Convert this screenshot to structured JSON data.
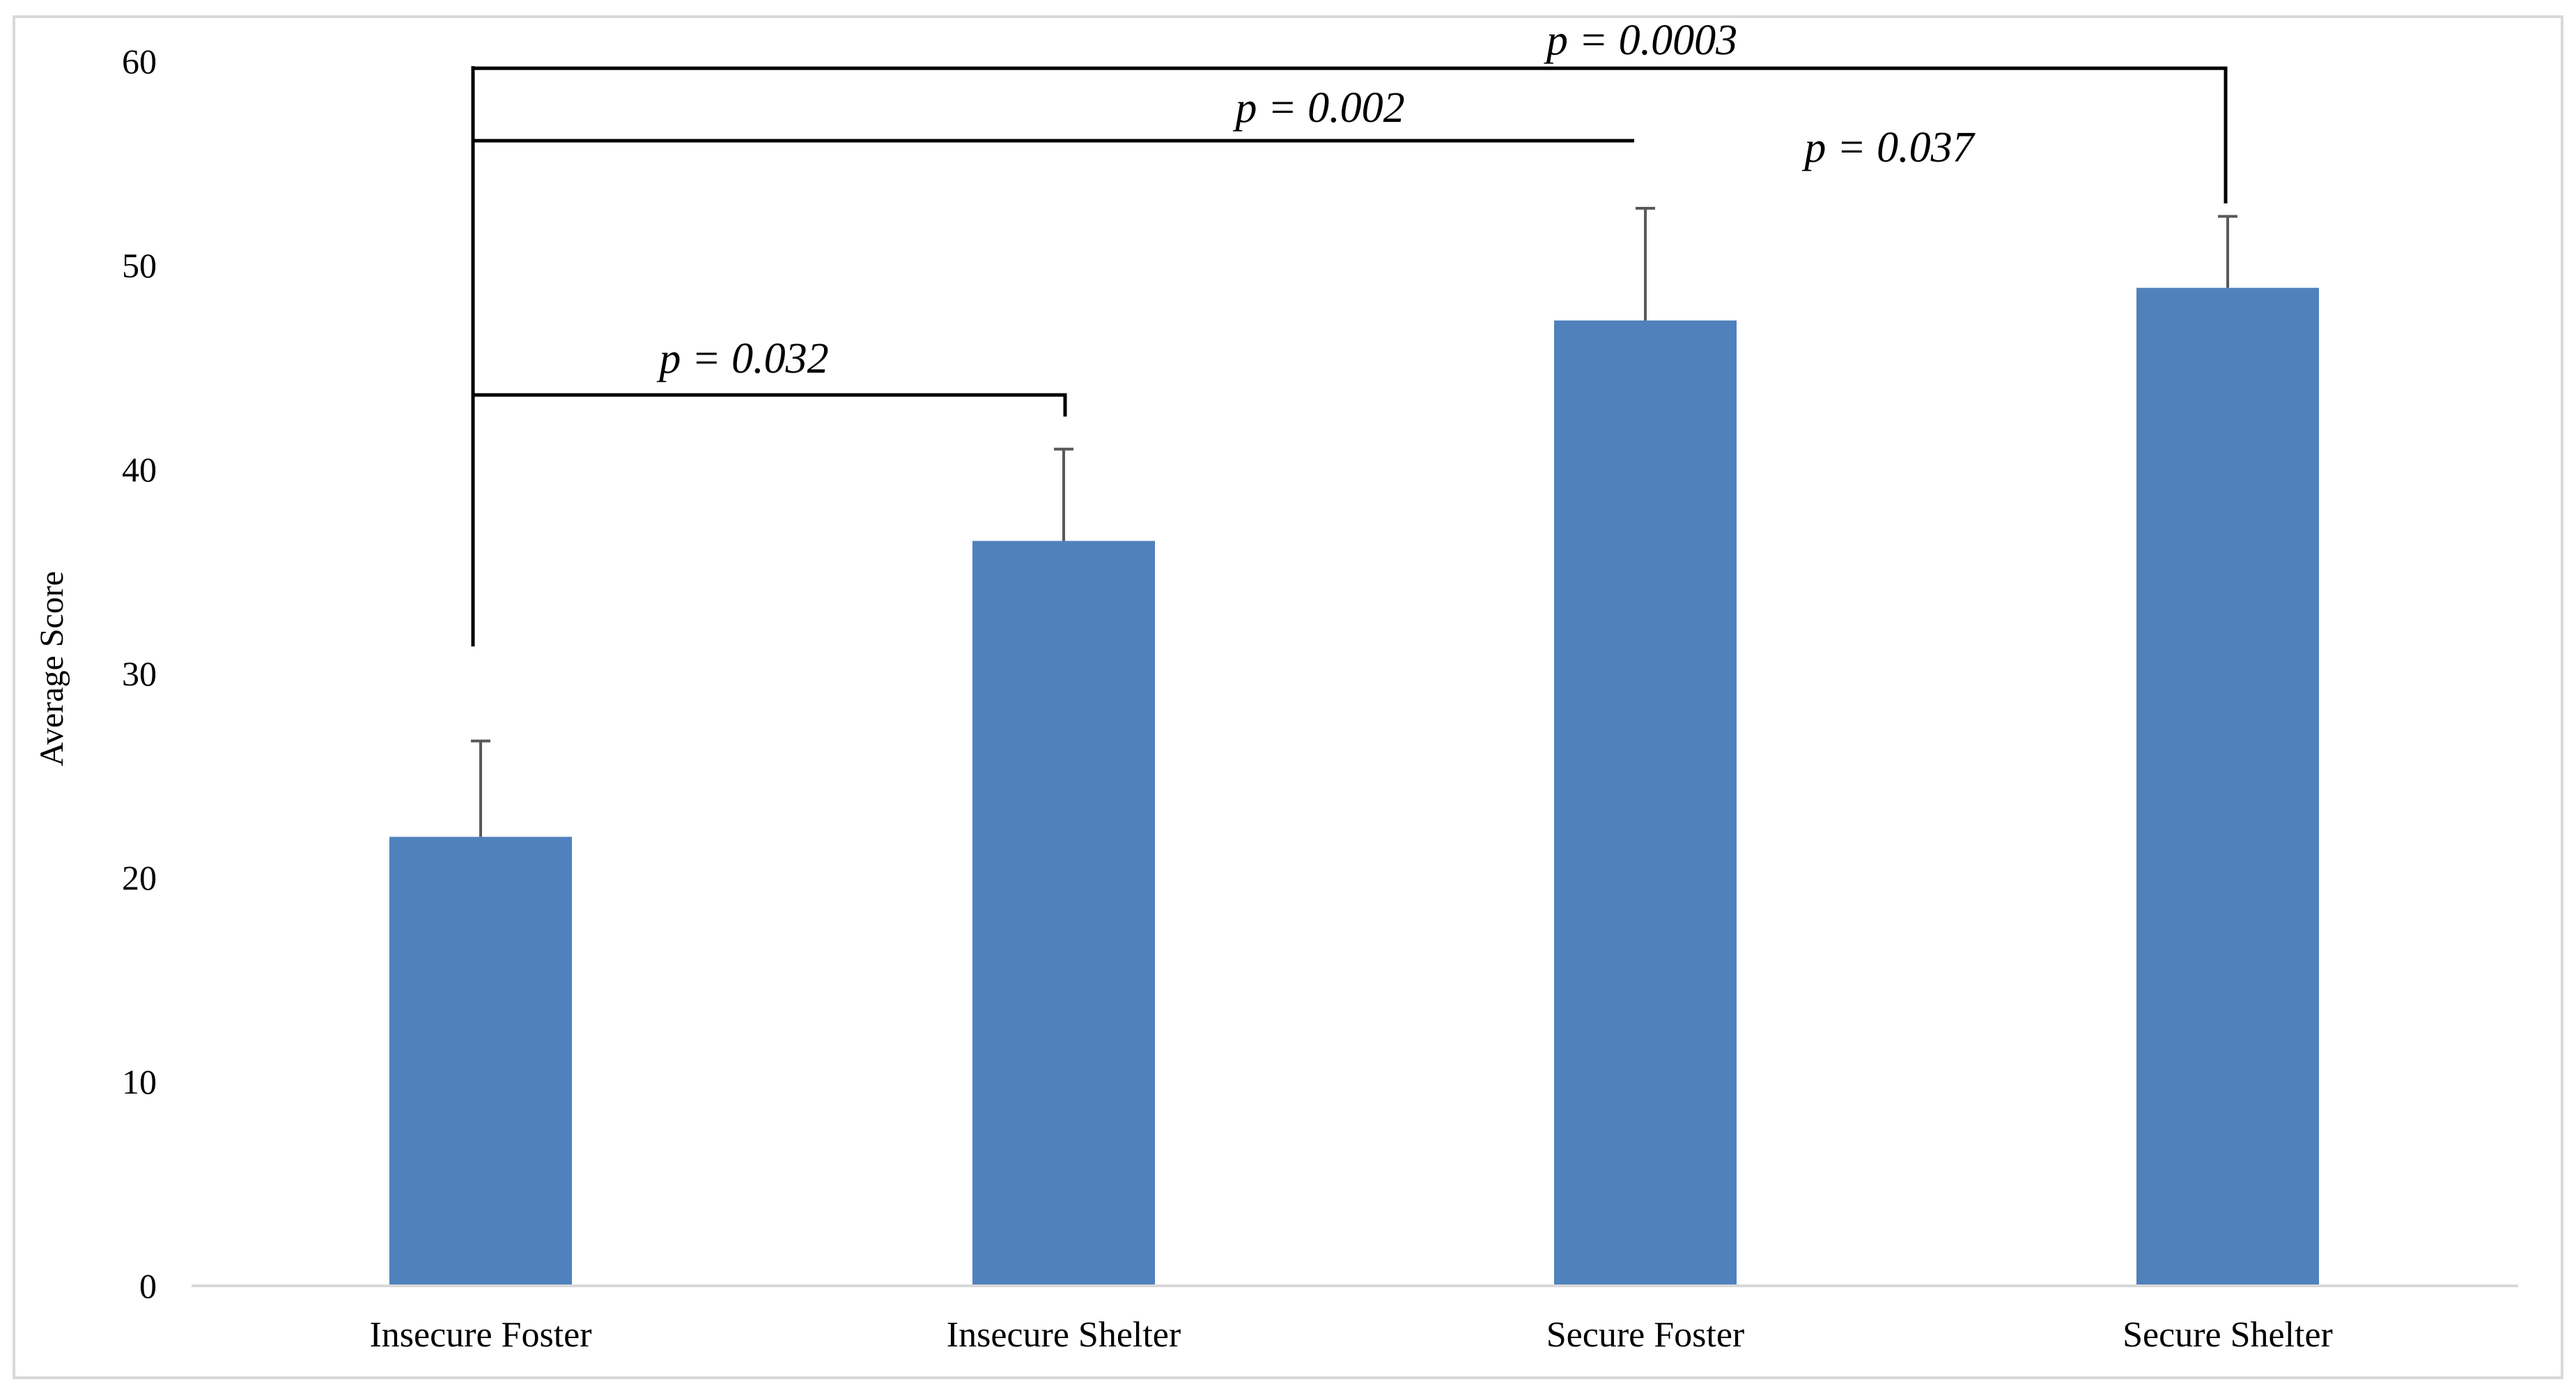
{
  "chart_data": {
    "type": "bar",
    "title": "",
    "xlabel": "",
    "ylabel": "Average Score",
    "ylim": [
      0,
      60
    ],
    "yticks": [
      0,
      10,
      20,
      30,
      40,
      50,
      60
    ],
    "grid": false,
    "legend": "none",
    "bar_color": "#4F81BD",
    "categories": [
      "Insecure Foster",
      "Insecure Shelter",
      "Secure Foster",
      "Secure Shelter"
    ],
    "values": [
      22,
      36.5,
      47.3,
      48.9
    ],
    "error_upper": [
      4.7,
      4.5,
      5.5,
      3.5
    ],
    "comparisons": [
      {
        "from": "Insecure Foster",
        "to": "Insecure Shelter",
        "label": "p = 0.032"
      },
      {
        "from": "Insecure Foster",
        "to": "Secure Foster",
        "label": "p = 0.002"
      },
      {
        "from": "Insecure Foster",
        "to": "Secure Shelter",
        "label": "p = 0.0003"
      },
      {
        "label": "p = 0.037"
      }
    ]
  }
}
